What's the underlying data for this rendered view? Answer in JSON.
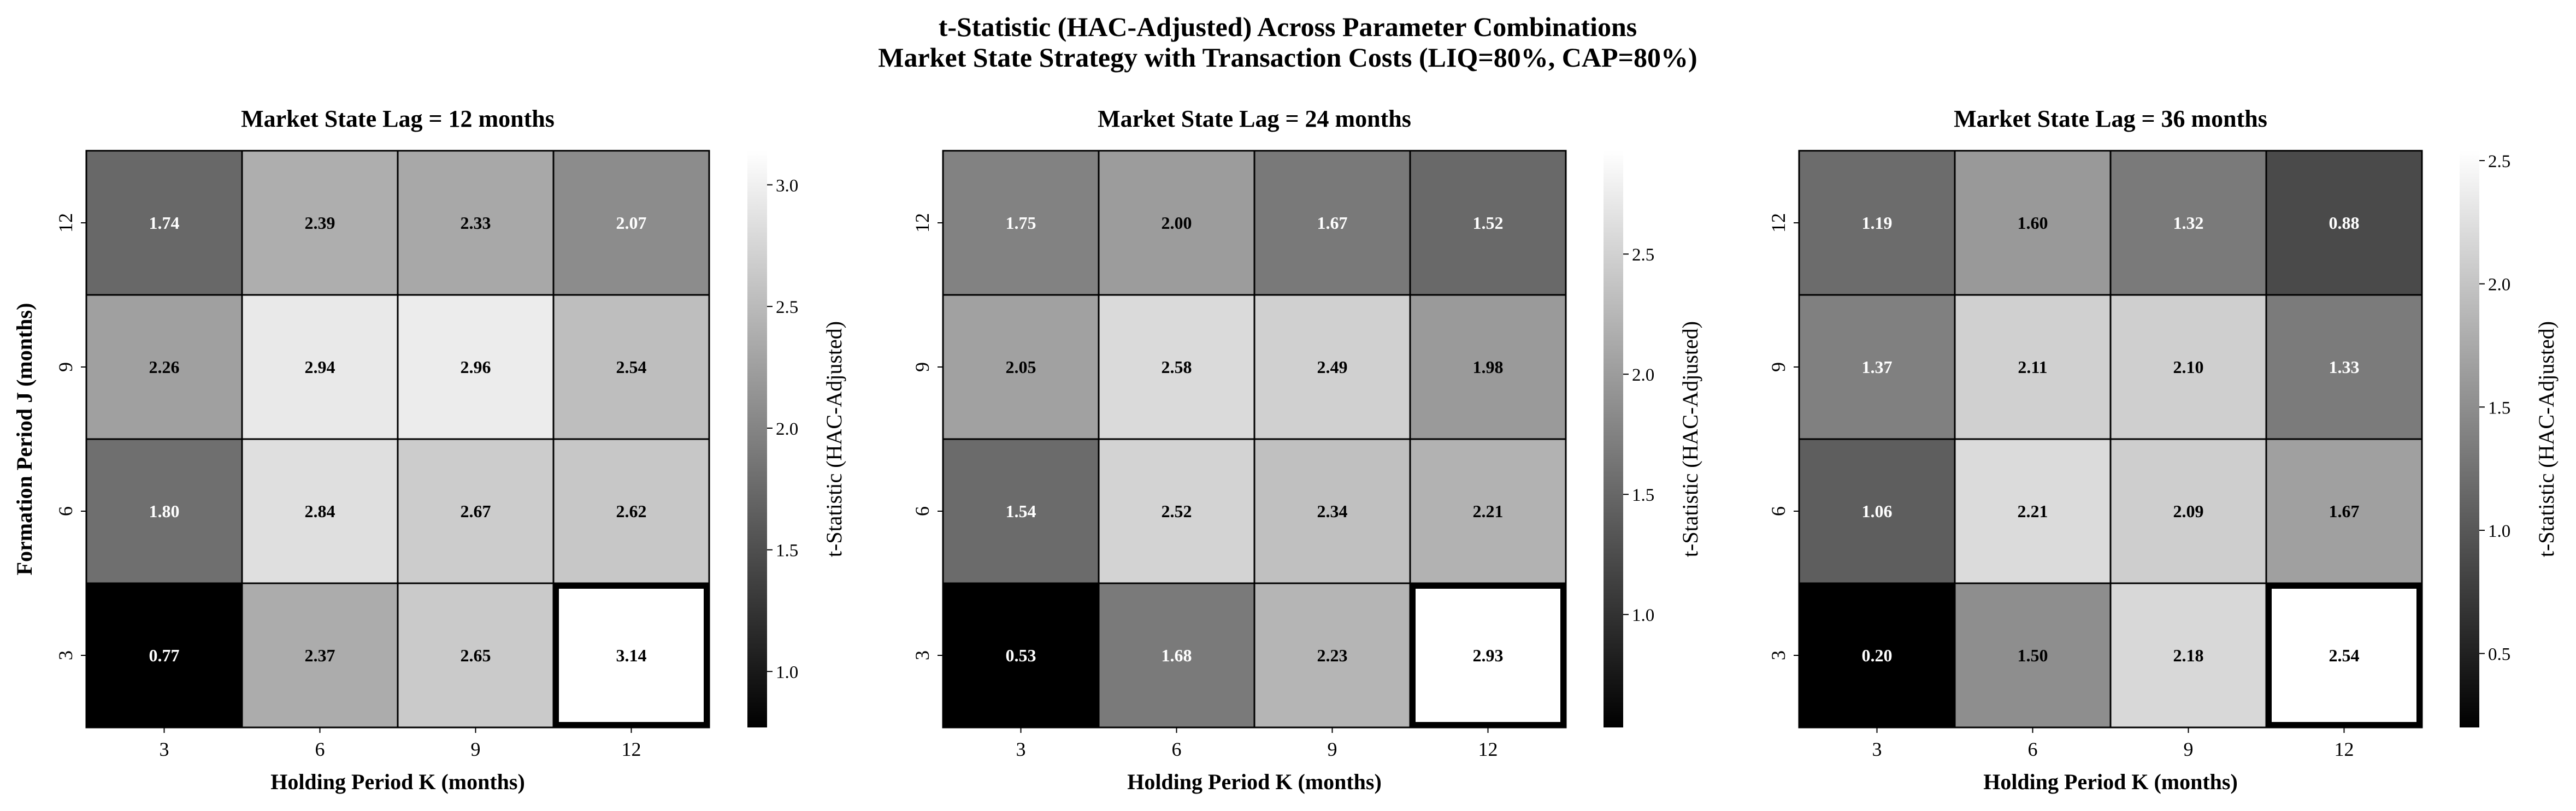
{
  "title_line1": "t-Statistic (HAC-Adjusted) Across Parameter Combinations",
  "title_line2": "Market State Strategy with Transaction Costs (LIQ=80%, CAP=80%)",
  "chart_data": [
    {
      "type": "heatmap",
      "title": "Market State Lag = 12 months",
      "xlabel": "Holding Period K (months)",
      "ylabel": "Formation Period J (months)",
      "x_categories": [
        "3",
        "6",
        "9",
        "12"
      ],
      "y_categories": [
        "12",
        "9",
        "6",
        "3"
      ],
      "values": [
        [
          1.74,
          2.39,
          2.33,
          2.07
        ],
        [
          2.26,
          2.94,
          2.96,
          2.54
        ],
        [
          1.8,
          2.84,
          2.67,
          2.62
        ],
        [
          0.77,
          2.37,
          2.65,
          3.14
        ]
      ],
      "highlight": {
        "row": 3,
        "col": 3
      },
      "colorbar": {
        "label": "t-Statistic (HAC-Adjusted)",
        "vmin": 0.77,
        "vmax": 3.14,
        "ticks": [
          "1.0",
          "1.5",
          "2.0",
          "2.5",
          "3.0"
        ]
      }
    },
    {
      "type": "heatmap",
      "title": "Market State Lag = 24 months",
      "xlabel": "Holding Period K (months)",
      "ylabel": "",
      "x_categories": [
        "3",
        "6",
        "9",
        "12"
      ],
      "y_categories": [
        "12",
        "9",
        "6",
        "3"
      ],
      "values": [
        [
          1.75,
          2.0,
          1.67,
          1.52
        ],
        [
          2.05,
          2.58,
          2.49,
          1.98
        ],
        [
          1.54,
          2.52,
          2.34,
          2.21
        ],
        [
          0.53,
          1.68,
          2.23,
          2.93
        ]
      ],
      "highlight": {
        "row": 3,
        "col": 3
      },
      "colorbar": {
        "label": "t-Statistic (HAC-Adjusted)",
        "vmin": 0.53,
        "vmax": 2.93,
        "ticks": [
          "1.0",
          "1.5",
          "2.0",
          "2.5"
        ]
      }
    },
    {
      "type": "heatmap",
      "title": "Market State Lag = 36 months",
      "xlabel": "Holding Period K (months)",
      "ylabel": "",
      "x_categories": [
        "3",
        "6",
        "9",
        "12"
      ],
      "y_categories": [
        "12",
        "9",
        "6",
        "3"
      ],
      "values": [
        [
          1.19,
          1.6,
          1.32,
          0.88
        ],
        [
          1.37,
          2.11,
          2.1,
          1.33
        ],
        [
          1.06,
          2.21,
          2.09,
          1.67
        ],
        [
          0.2,
          1.5,
          2.18,
          2.54
        ]
      ],
      "highlight": {
        "row": 3,
        "col": 3
      },
      "colorbar": {
        "label": "t-Statistic (HAC-Adjusted)",
        "vmin": 0.2,
        "vmax": 2.54,
        "ticks": [
          "0.5",
          "1.0",
          "1.5",
          "2.0",
          "2.5"
        ]
      }
    }
  ]
}
